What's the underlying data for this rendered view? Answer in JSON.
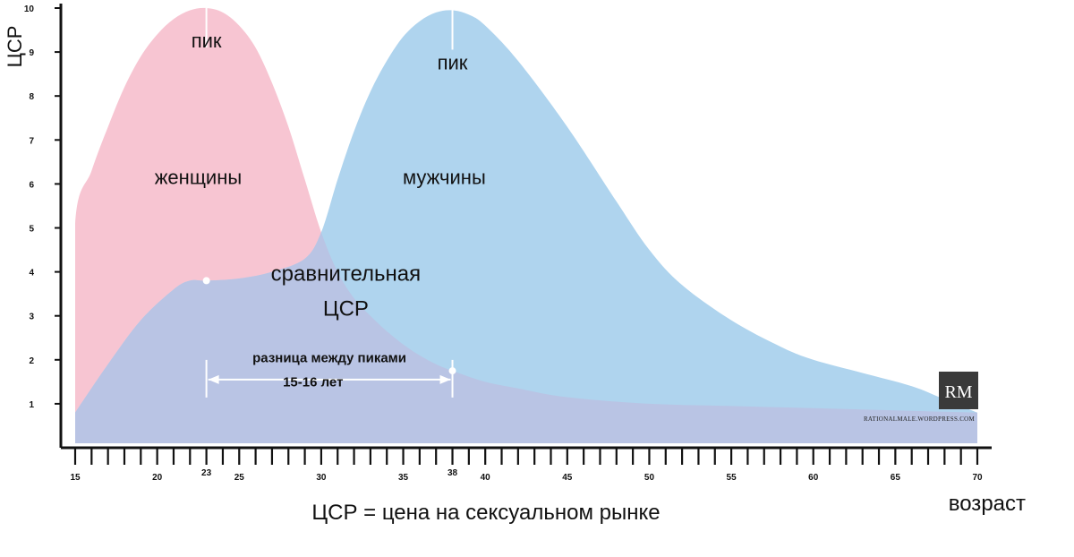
{
  "chart_data": {
    "type": "area",
    "ylabel": "ЦСР",
    "xlabel": "возраст",
    "footer": "ЦСР = цена на сексуальном рынке",
    "xlim": [
      15,
      70
    ],
    "ylim": [
      0,
      10
    ],
    "x_ticks": [
      15,
      20,
      23,
      25,
      30,
      35,
      38,
      40,
      45,
      50,
      55,
      60,
      65,
      70
    ],
    "y_ticks": [
      1,
      2,
      3,
      4,
      5,
      6,
      7,
      8,
      9,
      10
    ],
    "series": [
      {
        "name": "женщины",
        "color": "#f7c5d2",
        "points": [
          [
            15,
            0.8
          ],
          [
            15,
            5.1
          ],
          [
            16,
            6.3
          ],
          [
            17,
            7.3
          ],
          [
            18,
            8.2
          ],
          [
            19,
            8.9
          ],
          [
            20,
            9.4
          ],
          [
            21,
            9.75
          ],
          [
            22,
            9.95
          ],
          [
            23,
            10.0
          ],
          [
            24,
            9.9
          ],
          [
            25,
            9.6
          ],
          [
            26,
            9.1
          ],
          [
            27,
            8.3
          ],
          [
            28,
            7.3
          ],
          [
            29,
            6.1
          ],
          [
            30,
            4.9
          ],
          [
            31,
            4.0
          ],
          [
            32,
            3.4
          ],
          [
            33,
            3.0
          ],
          [
            34,
            2.65
          ],
          [
            35,
            2.35
          ],
          [
            36,
            2.1
          ],
          [
            37,
            1.9
          ],
          [
            38,
            1.75
          ],
          [
            40,
            1.5
          ],
          [
            42,
            1.35
          ],
          [
            45,
            1.15
          ],
          [
            50,
            1.0
          ],
          [
            55,
            0.95
          ],
          [
            60,
            0.9
          ],
          [
            65,
            0.85
          ],
          [
            70,
            0.8
          ]
        ]
      },
      {
        "name": "мужчины",
        "color": "#afd4ee",
        "points": [
          [
            15,
            0.8
          ],
          [
            17,
            1.9
          ],
          [
            19,
            2.9
          ],
          [
            21,
            3.6
          ],
          [
            22,
            3.8
          ],
          [
            23,
            3.8
          ],
          [
            25,
            3.85
          ],
          [
            27,
            4.0
          ],
          [
            29,
            4.3
          ],
          [
            30,
            4.9
          ],
          [
            31,
            6.1
          ],
          [
            32,
            7.2
          ],
          [
            33,
            8.1
          ],
          [
            34,
            8.8
          ],
          [
            35,
            9.35
          ],
          [
            36,
            9.7
          ],
          [
            37,
            9.9
          ],
          [
            38,
            9.95
          ],
          [
            39,
            9.85
          ],
          [
            40,
            9.6
          ],
          [
            42,
            8.8
          ],
          [
            45,
            7.3
          ],
          [
            48,
            5.6
          ],
          [
            50,
            4.5
          ],
          [
            52,
            3.7
          ],
          [
            55,
            2.9
          ],
          [
            58,
            2.3
          ],
          [
            60,
            2.0
          ],
          [
            63,
            1.7
          ],
          [
            66,
            1.4
          ],
          [
            68,
            1.1
          ],
          [
            70,
            0.8
          ]
        ]
      }
    ],
    "overlap_color": "#b9c4e4",
    "annotations": [
      {
        "text": "пик",
        "x": 23,
        "y": 9.1
      },
      {
        "text": "пик",
        "x": 38,
        "y": 8.6
      },
      {
        "text": "женщины",
        "x": 22.5,
        "y": 6.0
      },
      {
        "text": "мужчины",
        "x": 37.5,
        "y": 6.0
      },
      {
        "text": "сравнительная",
        "x": 31.5,
        "y": 3.8
      },
      {
        "text": "ЦСР",
        "x": 31.5,
        "y": 3.0
      },
      {
        "text": "разница между пиками",
        "x": 30.5,
        "y": 1.95
      },
      {
        "text": "15-16 лет",
        "x": 29.5,
        "y": 1.4
      }
    ],
    "markers": [
      [
        23,
        3.8
      ],
      [
        38,
        1.75
      ]
    ],
    "peak_lines": [
      23,
      38
    ],
    "range_arrow": {
      "from": 23,
      "to": 38,
      "y": 1.55
    }
  },
  "logo": {
    "initials": "RM",
    "url": "RATIONALMALE.WORDPRESS.COM"
  }
}
